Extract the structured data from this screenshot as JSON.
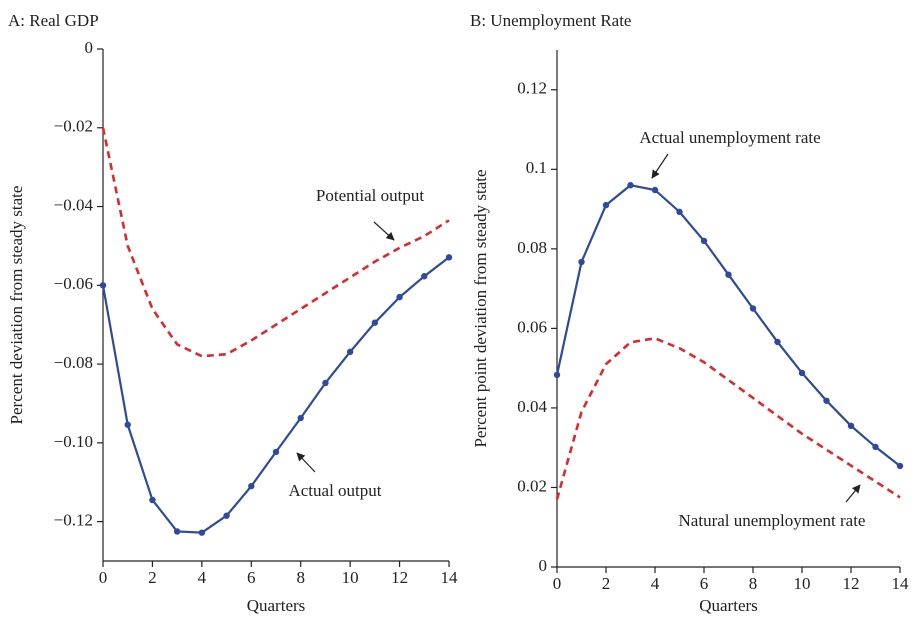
{
  "chart_data": [
    {
      "type": "line",
      "title": "A: Real GDP",
      "x_label": "Quarters",
      "y_label": "Percent deviation from steady state",
      "x": [
        0,
        1,
        2,
        3,
        4,
        5,
        6,
        7,
        8,
        9,
        10,
        11,
        12,
        13,
        14
      ],
      "xlim": [
        0,
        14
      ],
      "xticks": [
        0,
        2,
        4,
        6,
        8,
        10,
        12,
        14
      ],
      "ylim": [
        -0.13,
        0
      ],
      "yticks": [
        {
          "value": -0.12,
          "label": "−0.12"
        },
        {
          "value": -0.1,
          "label": "−0.10"
        },
        {
          "value": -0.08,
          "label": "−0.08"
        },
        {
          "value": -0.06,
          "label": "−0.06"
        },
        {
          "value": -0.04,
          "label": "−0.04"
        },
        {
          "value": -0.02,
          "label": "−0.02"
        },
        0
      ],
      "series": [
        {
          "name": "Actual output",
          "color": "#2e4a9e",
          "style": "solid",
          "markers": true,
          "values": [
            -0.06,
            -0.0954,
            -0.1145,
            -0.1225,
            -0.1228,
            -0.1185,
            -0.111,
            -0.1023,
            -0.0937,
            -0.0848,
            -0.0769,
            -0.0695,
            -0.063,
            -0.0577,
            -0.0529
          ]
        },
        {
          "name": "Potential output",
          "color": "#e0272a",
          "style": "dashed",
          "markers": false,
          "values": [
            -0.02,
            -0.05,
            -0.066,
            -0.075,
            -0.078,
            -0.0775,
            -0.074,
            -0.07,
            -0.066,
            -0.062,
            -0.058,
            -0.054,
            -0.0505,
            -0.0475,
            -0.0435
          ]
        }
      ]
    },
    {
      "type": "line",
      "title": "B: Unemployment Rate",
      "x_label": "Quarters",
      "y_label": "Percent point deviation from steady state",
      "x": [
        0,
        1,
        2,
        3,
        4,
        5,
        6,
        7,
        8,
        9,
        10,
        11,
        12,
        13,
        14
      ],
      "xlim": [
        0,
        14
      ],
      "xticks": [
        0,
        2,
        4,
        6,
        8,
        10,
        12,
        14
      ],
      "ylim": [
        0,
        0.13
      ],
      "yticks": [
        0,
        0.02,
        0.04,
        0.06,
        0.08,
        0.1,
        0.12
      ],
      "series": [
        {
          "name": "Actual unemployment rate",
          "color": "#2e4a9e",
          "style": "solid",
          "markers": true,
          "values": [
            0.0483,
            0.0767,
            0.091,
            0.096,
            0.0948,
            0.0893,
            0.082,
            0.0735,
            0.065,
            0.0566,
            0.0488,
            0.0418,
            0.0355,
            0.0302,
            0.0254
          ]
        },
        {
          "name": "Natural unemployment rate",
          "color": "#e0272a",
          "style": "dashed",
          "markers": false,
          "values": [
            0.017,
            0.039,
            0.051,
            0.0565,
            0.0575,
            0.055,
            0.0515,
            0.047,
            0.0425,
            0.038,
            0.0335,
            0.0295,
            0.0255,
            0.0215,
            0.0175
          ]
        }
      ]
    }
  ]
}
